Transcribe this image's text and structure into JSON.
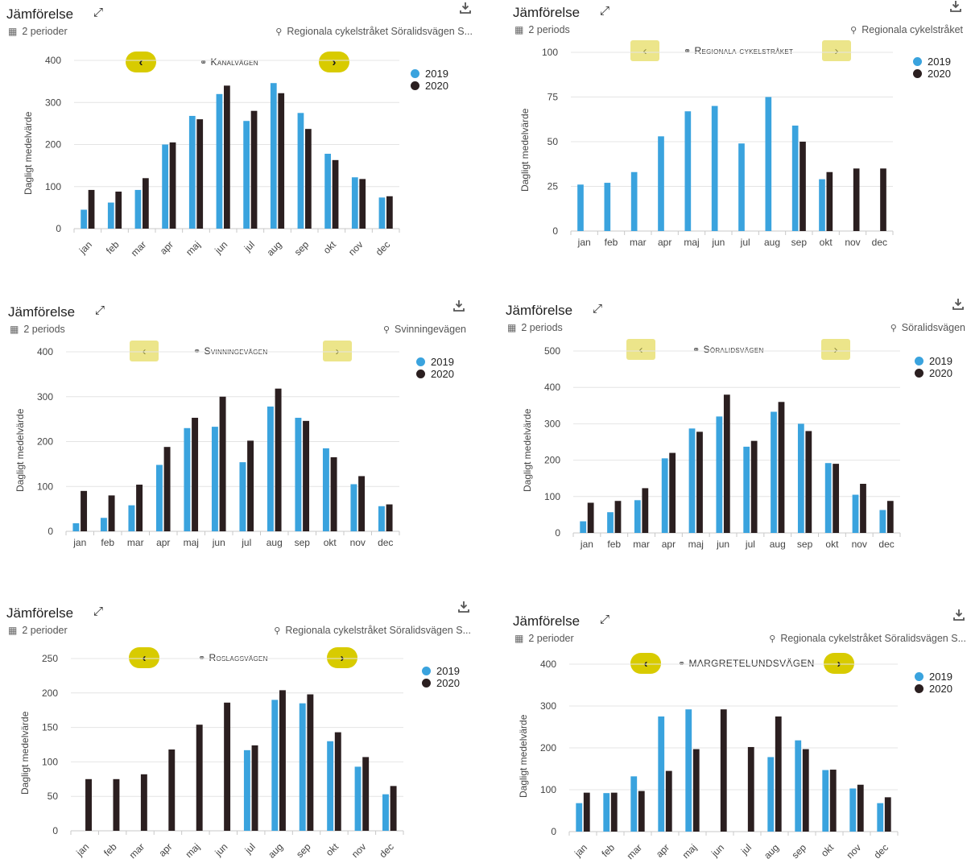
{
  "colors": {
    "c2019": "#3aa3de",
    "c2020": "#2b1f20",
    "grid": "#e4e4e4",
    "axis": "#c8c8c8"
  },
  "months": [
    "jan",
    "feb",
    "mar",
    "apr",
    "maj",
    "jun",
    "jul",
    "aug",
    "sep",
    "okt",
    "nov",
    "dec"
  ],
  "panels": [
    {
      "title": "Jämförelse",
      "periods": "2 perioder",
      "location": "Regionala cykelstråket Söralidsvägen S...",
      "station": "Kanalvägen",
      "nav_style": "dark",
      "legend": [
        "2019",
        "2020"
      ],
      "chart_data": {
        "type": "bar",
        "ylabel": "Dagligt medelvärde",
        "ylim": [
          0,
          400
        ],
        "yticks": [
          0,
          100,
          200,
          300,
          400
        ],
        "rotated_xlabels": true,
        "categories": [
          "jan",
          "feb",
          "mar",
          "apr",
          "maj",
          "jun",
          "jul",
          "aug",
          "sep",
          "okt",
          "nov",
          "dec"
        ],
        "series": [
          {
            "name": "2019",
            "values": [
              45,
              62,
              92,
              200,
              268,
              320,
              256,
              346,
              275,
              178,
              122,
              74
            ]
          },
          {
            "name": "2020",
            "values": [
              92,
              88,
              120,
              205,
              260,
              340,
              280,
              322,
              237,
              163,
              118,
              77
            ]
          }
        ]
      }
    },
    {
      "title": "Jämförelse",
      "periods": "2 periods",
      "location": "Regionala cykelstråket",
      "station": "Regionala cykelstråket",
      "nav_style": "light",
      "legend": [
        "2019",
        "2020"
      ],
      "chart_data": {
        "type": "bar",
        "ylabel": "Dagligt medelvärde",
        "ylim": [
          0,
          100
        ],
        "yticks": [
          0,
          25,
          50,
          75,
          100
        ],
        "rotated_xlabels": false,
        "categories": [
          "jan",
          "feb",
          "mar",
          "apr",
          "maj",
          "jun",
          "jul",
          "aug",
          "sep",
          "okt",
          "nov",
          "dec"
        ],
        "series": [
          {
            "name": "2019",
            "values": [
              26,
              27,
              33,
              53,
              67,
              70,
              49,
              75,
              59,
              29,
              0,
              0
            ]
          },
          {
            "name": "2020",
            "values": [
              0,
              0,
              0,
              0,
              0,
              0,
              0,
              0,
              50,
              33,
              35,
              35
            ]
          }
        ]
      }
    },
    {
      "title": "Jämförelse",
      "periods": "2 periods",
      "location": "Svinningevägen",
      "station": "Svinningevägen",
      "nav_style": "light",
      "legend": [
        "2019",
        "2020"
      ],
      "chart_data": {
        "type": "bar",
        "ylabel": "Dagligt medelvärde",
        "ylim": [
          0,
          400
        ],
        "yticks": [
          0,
          100,
          200,
          300,
          400
        ],
        "rotated_xlabels": false,
        "categories": [
          "jan",
          "feb",
          "mar",
          "apr",
          "maj",
          "jun",
          "jul",
          "aug",
          "sep",
          "okt",
          "nov",
          "dec"
        ],
        "series": [
          {
            "name": "2019",
            "values": [
              18,
              30,
              58,
              148,
              230,
              233,
              154,
              278,
              253,
              185,
              105,
              56
            ]
          },
          {
            "name": "2020",
            "values": [
              90,
              80,
              104,
              188,
              253,
              300,
              202,
              318,
              246,
              165,
              123,
              60
            ]
          }
        ]
      }
    },
    {
      "title": "Jämförelse",
      "periods": "2 periods",
      "location": "Söralidsvägen",
      "station": "Söralidsvägen",
      "nav_style": "light",
      "legend": [
        "2019",
        "2020"
      ],
      "chart_data": {
        "type": "bar",
        "ylabel": "Dagligt medelvärde",
        "ylim": [
          0,
          500
        ],
        "yticks": [
          0,
          100,
          200,
          300,
          400,
          500
        ],
        "rotated_xlabels": false,
        "categories": [
          "jan",
          "feb",
          "mar",
          "apr",
          "maj",
          "jun",
          "jul",
          "aug",
          "sep",
          "okt",
          "nov",
          "dec"
        ],
        "series": [
          {
            "name": "2019",
            "values": [
              32,
              57,
              90,
              205,
              287,
              320,
              237,
              333,
              300,
              192,
              105,
              63
            ]
          },
          {
            "name": "2020",
            "values": [
              83,
              88,
              123,
              220,
              278,
              380,
              253,
              360,
              280,
              190,
              135,
              88
            ]
          }
        ]
      }
    },
    {
      "title": "Jämförelse",
      "periods": "2 perioder",
      "location": "Regionala cykelstråket Söralidsvägen S...",
      "station": "Roslagsvägen",
      "nav_style": "dark",
      "legend": [
        "2019",
        "2020"
      ],
      "chart_data": {
        "type": "bar",
        "ylabel": "Dagligt medelvärde",
        "ylim": [
          0,
          250
        ],
        "yticks": [
          0,
          50,
          100,
          150,
          200,
          250
        ],
        "rotated_xlabels": true,
        "categories": [
          "jan",
          "feb",
          "mar",
          "apr",
          "maj",
          "jun",
          "jul",
          "aug",
          "sep",
          "okt",
          "nov",
          "dec"
        ],
        "series": [
          {
            "name": "2019",
            "values": [
              0,
              0,
              0,
              0,
              0,
              0,
              117,
              190,
              185,
              130,
              93,
              53
            ]
          },
          {
            "name": "2020",
            "values": [
              75,
              75,
              82,
              118,
              154,
              186,
              124,
              204,
              198,
              143,
              107,
              65
            ]
          }
        ]
      }
    },
    {
      "title": "Jämförelse",
      "periods": "2 perioder",
      "location": "Regionala cykelstråket Söralidsvägen S...",
      "station": "MARGRETELUNDSVÄGEN",
      "nav_style": "dark",
      "legend": [
        "2019",
        "2020"
      ],
      "chart_data": {
        "type": "bar",
        "ylabel": "Dagligt medelvärde",
        "ylim": [
          0,
          400
        ],
        "yticks": [
          0,
          100,
          200,
          300,
          400
        ],
        "rotated_xlabels": true,
        "categories": [
          "jan",
          "feb",
          "mar",
          "apr",
          "maj",
          "jun",
          "jul",
          "aug",
          "sep",
          "okt",
          "nov",
          "dec"
        ],
        "series": [
          {
            "name": "2019",
            "values": [
              68,
              92,
              132,
              275,
              292,
              0,
              0,
              178,
              218,
              147,
              103,
              68
            ]
          },
          {
            "name": "2020",
            "values": [
              93,
              93,
              97,
              145,
              197,
              292,
              202,
              275,
              197,
              148,
              112,
              82
            ]
          }
        ]
      }
    }
  ]
}
